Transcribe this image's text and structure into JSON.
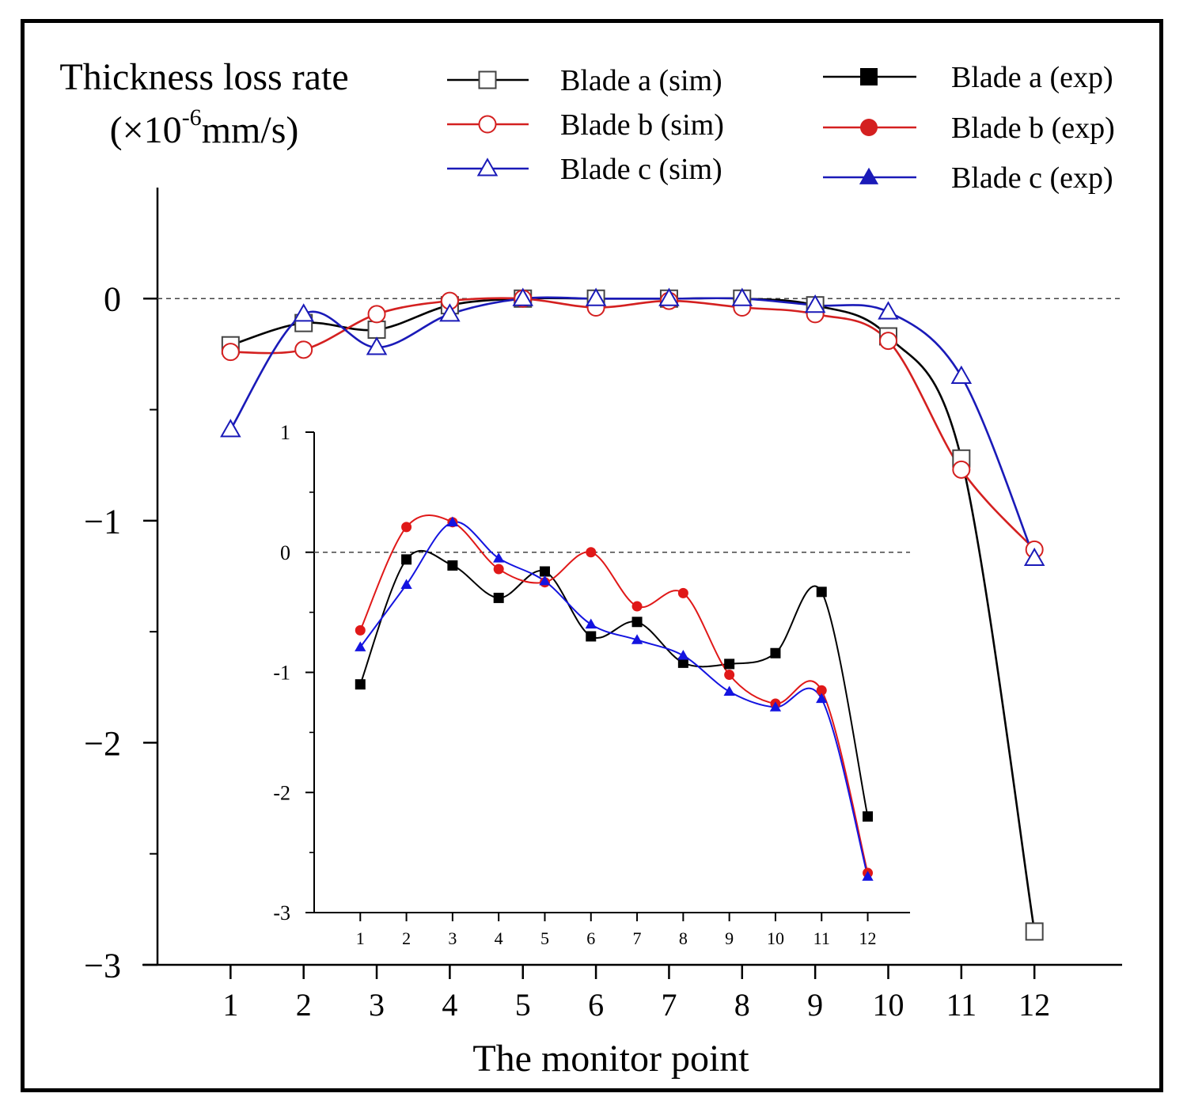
{
  "chart_data": {
    "type": "line",
    "ylabel": "Thickness loss rate",
    "ylabel_unit": {
      "prefix": "(×10",
      "exponent": "-6",
      "suffix": "mm/s)"
    },
    "xlabel": "The monitor point",
    "x": [
      1,
      2,
      3,
      4,
      5,
      6,
      7,
      8,
      9,
      10,
      11,
      12
    ],
    "xlim": [
      0,
      13.2
    ],
    "ylim": [
      -3,
      0.5
    ],
    "yticks": [
      0,
      -1,
      -2,
      -3
    ],
    "ytick_labels": [
      "0",
      "−1",
      "−2",
      "−3"
    ],
    "zero_line": true,
    "legend_position": "top",
    "legend": [
      {
        "label": "Blade a (sim)",
        "color": "#000000",
        "marker": "square",
        "filled": false
      },
      {
        "label": "Blade b (sim)",
        "color": "#d42020",
        "marker": "circle",
        "filled": false
      },
      {
        "label": "Blade c (sim)",
        "color": "#1a1ab8",
        "marker": "triangle",
        "filled": false
      },
      {
        "label": "Blade a (exp)",
        "color": "#000000",
        "marker": "square",
        "filled": true
      },
      {
        "label": "Blade b (exp)",
        "color": "#d42020",
        "marker": "circle",
        "filled": true
      },
      {
        "label": "Blade c (exp)",
        "color": "#1a1ab8",
        "marker": "triangle",
        "filled": true
      }
    ],
    "series": [
      {
        "key": "a",
        "name": "Blade a (sim)",
        "color": "#000000",
        "marker": "square",
        "values": [
          -0.21,
          -0.11,
          -0.14,
          -0.03,
          0.0,
          0.0,
          0.0,
          0.0,
          -0.03,
          -0.17,
          -0.72,
          -2.85
        ]
      },
      {
        "key": "b",
        "name": "Blade b (sim)",
        "color": "#d42020",
        "marker": "circle",
        "values": [
          -0.24,
          -0.23,
          -0.07,
          -0.01,
          0.0,
          -0.04,
          -0.01,
          -0.04,
          -0.07,
          -0.19,
          -0.77,
          -1.13
        ]
      },
      {
        "key": "c",
        "name": "Blade c (sim)",
        "color": "#1a1ab8",
        "marker": "triangle",
        "values": [
          -0.59,
          -0.07,
          -0.22,
          -0.07,
          0.0,
          0.0,
          0.0,
          0.0,
          -0.03,
          -0.06,
          -0.35,
          -1.17
        ]
      }
    ],
    "inset": {
      "type": "line",
      "x": [
        1,
        2,
        3,
        4,
        5,
        6,
        7,
        8,
        9,
        10,
        11,
        12
      ],
      "xlim": [
        0,
        12.9
      ],
      "ylim": [
        -3,
        1
      ],
      "yticks": [
        1,
        0,
        -1,
        -2,
        -3
      ],
      "ytick_labels": [
        "1",
        "0",
        "-1",
        "-2",
        "-3"
      ],
      "zero_line": true,
      "series": [
        {
          "key": "a",
          "name": "Blade a (exp)",
          "color": "#000000",
          "marker": "square",
          "values": [
            -1.1,
            -0.06,
            -0.11,
            -0.38,
            -0.16,
            -0.7,
            -0.58,
            -0.92,
            -0.93,
            -0.84,
            -0.33,
            -2.2
          ]
        },
        {
          "key": "b",
          "name": "Blade b (exp)",
          "color": "#e01818",
          "marker": "circle",
          "values": [
            -0.65,
            0.21,
            0.25,
            -0.14,
            -0.25,
            0.0,
            -0.45,
            -0.34,
            -1.02,
            -1.26,
            -1.15,
            -2.67
          ]
        },
        {
          "key": "c",
          "name": "Blade c (exp)",
          "color": "#1414e0",
          "marker": "triangle",
          "values": [
            -0.79,
            -0.27,
            0.25,
            -0.05,
            -0.24,
            -0.6,
            -0.73,
            -0.86,
            -1.16,
            -1.29,
            -1.22,
            -2.7
          ]
        }
      ]
    }
  }
}
